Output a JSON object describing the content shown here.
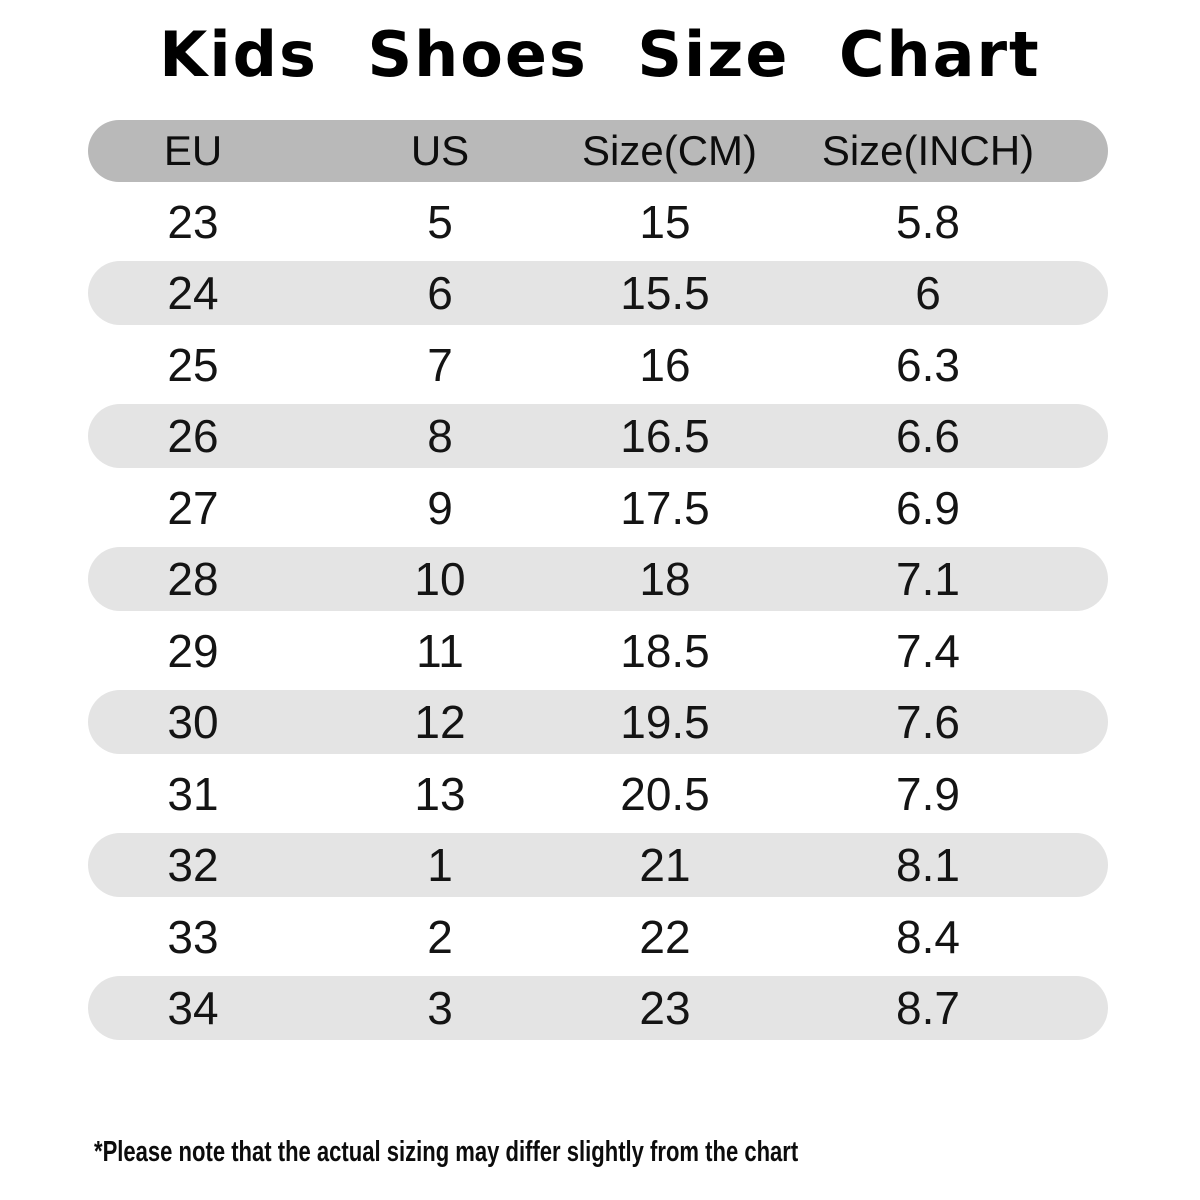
{
  "title": "Kids Shoes Size Chart",
  "chart_data": {
    "type": "table",
    "title": "Kids Shoes Size Chart",
    "columns": [
      "EU",
      "US",
      "Size(CM)",
      "Size(INCH)"
    ],
    "rows": [
      [
        "23",
        "5",
        "15",
        "5.8"
      ],
      [
        "24",
        "6",
        "15.5",
        "6"
      ],
      [
        "25",
        "7",
        "16",
        "6.3"
      ],
      [
        "26",
        "8",
        "16.5",
        "6.6"
      ],
      [
        "27",
        "9",
        "17.5",
        "6.9"
      ],
      [
        "28",
        "10",
        "18",
        "7.1"
      ],
      [
        "29",
        "11",
        "18.5",
        "7.4"
      ],
      [
        "30",
        "12",
        "19.5",
        "7.6"
      ],
      [
        "31",
        "13",
        "20.5",
        "7.9"
      ],
      [
        "32",
        "1",
        "21",
        "8.1"
      ],
      [
        "33",
        "2",
        "22",
        "8.4"
      ],
      [
        "34",
        "3",
        "23",
        "8.7"
      ]
    ]
  },
  "footnote": "*Please note that the actual sizing may differ slightly from the chart",
  "colors": {
    "background": "#ffffff",
    "header_pill": "#b9b9b9",
    "row_pill": "#e4e4e4",
    "text": "#111111"
  }
}
